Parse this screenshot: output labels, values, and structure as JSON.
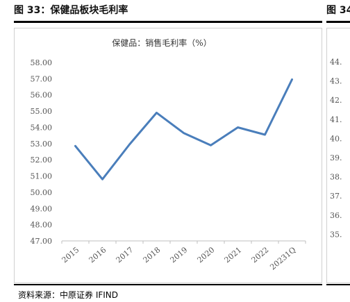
{
  "figure_left": {
    "title": "图 33：保健品板块毛利率",
    "source": "资料来源：中原证券  IFIND"
  },
  "figure_right": {
    "title": "图 34",
    "y_ticks": [
      "44.",
      "43.",
      "42.",
      "41.",
      "40.",
      "39.",
      "38.",
      "37.",
      "36.",
      "35."
    ]
  },
  "chart_data": [
    {
      "type": "line",
      "title": "保健品：销售毛利率（%）",
      "categories": [
        "2015",
        "2016",
        "2017",
        "2018",
        "2019",
        "2020",
        "2021",
        "2022",
        "2023Q1"
      ],
      "tick_labels": [
        "2015",
        "2016",
        "2017",
        "2018",
        "2019",
        "2020",
        "2021",
        "2022",
        "20231Q"
      ],
      "series": [
        {
          "values": [
            52.85,
            50.8,
            52.95,
            54.9,
            53.65,
            52.9,
            54.0,
            53.55,
            56.95
          ]
        }
      ],
      "ylim": [
        47,
        58
      ],
      "yticks": [
        "47.00",
        "48.00",
        "49.00",
        "50.00",
        "51.00",
        "52.00",
        "53.00",
        "54.00",
        "55.00",
        "56.00",
        "57.00",
        "58.00"
      ],
      "grid": false,
      "line_color": "#4a7ebb"
    }
  ]
}
